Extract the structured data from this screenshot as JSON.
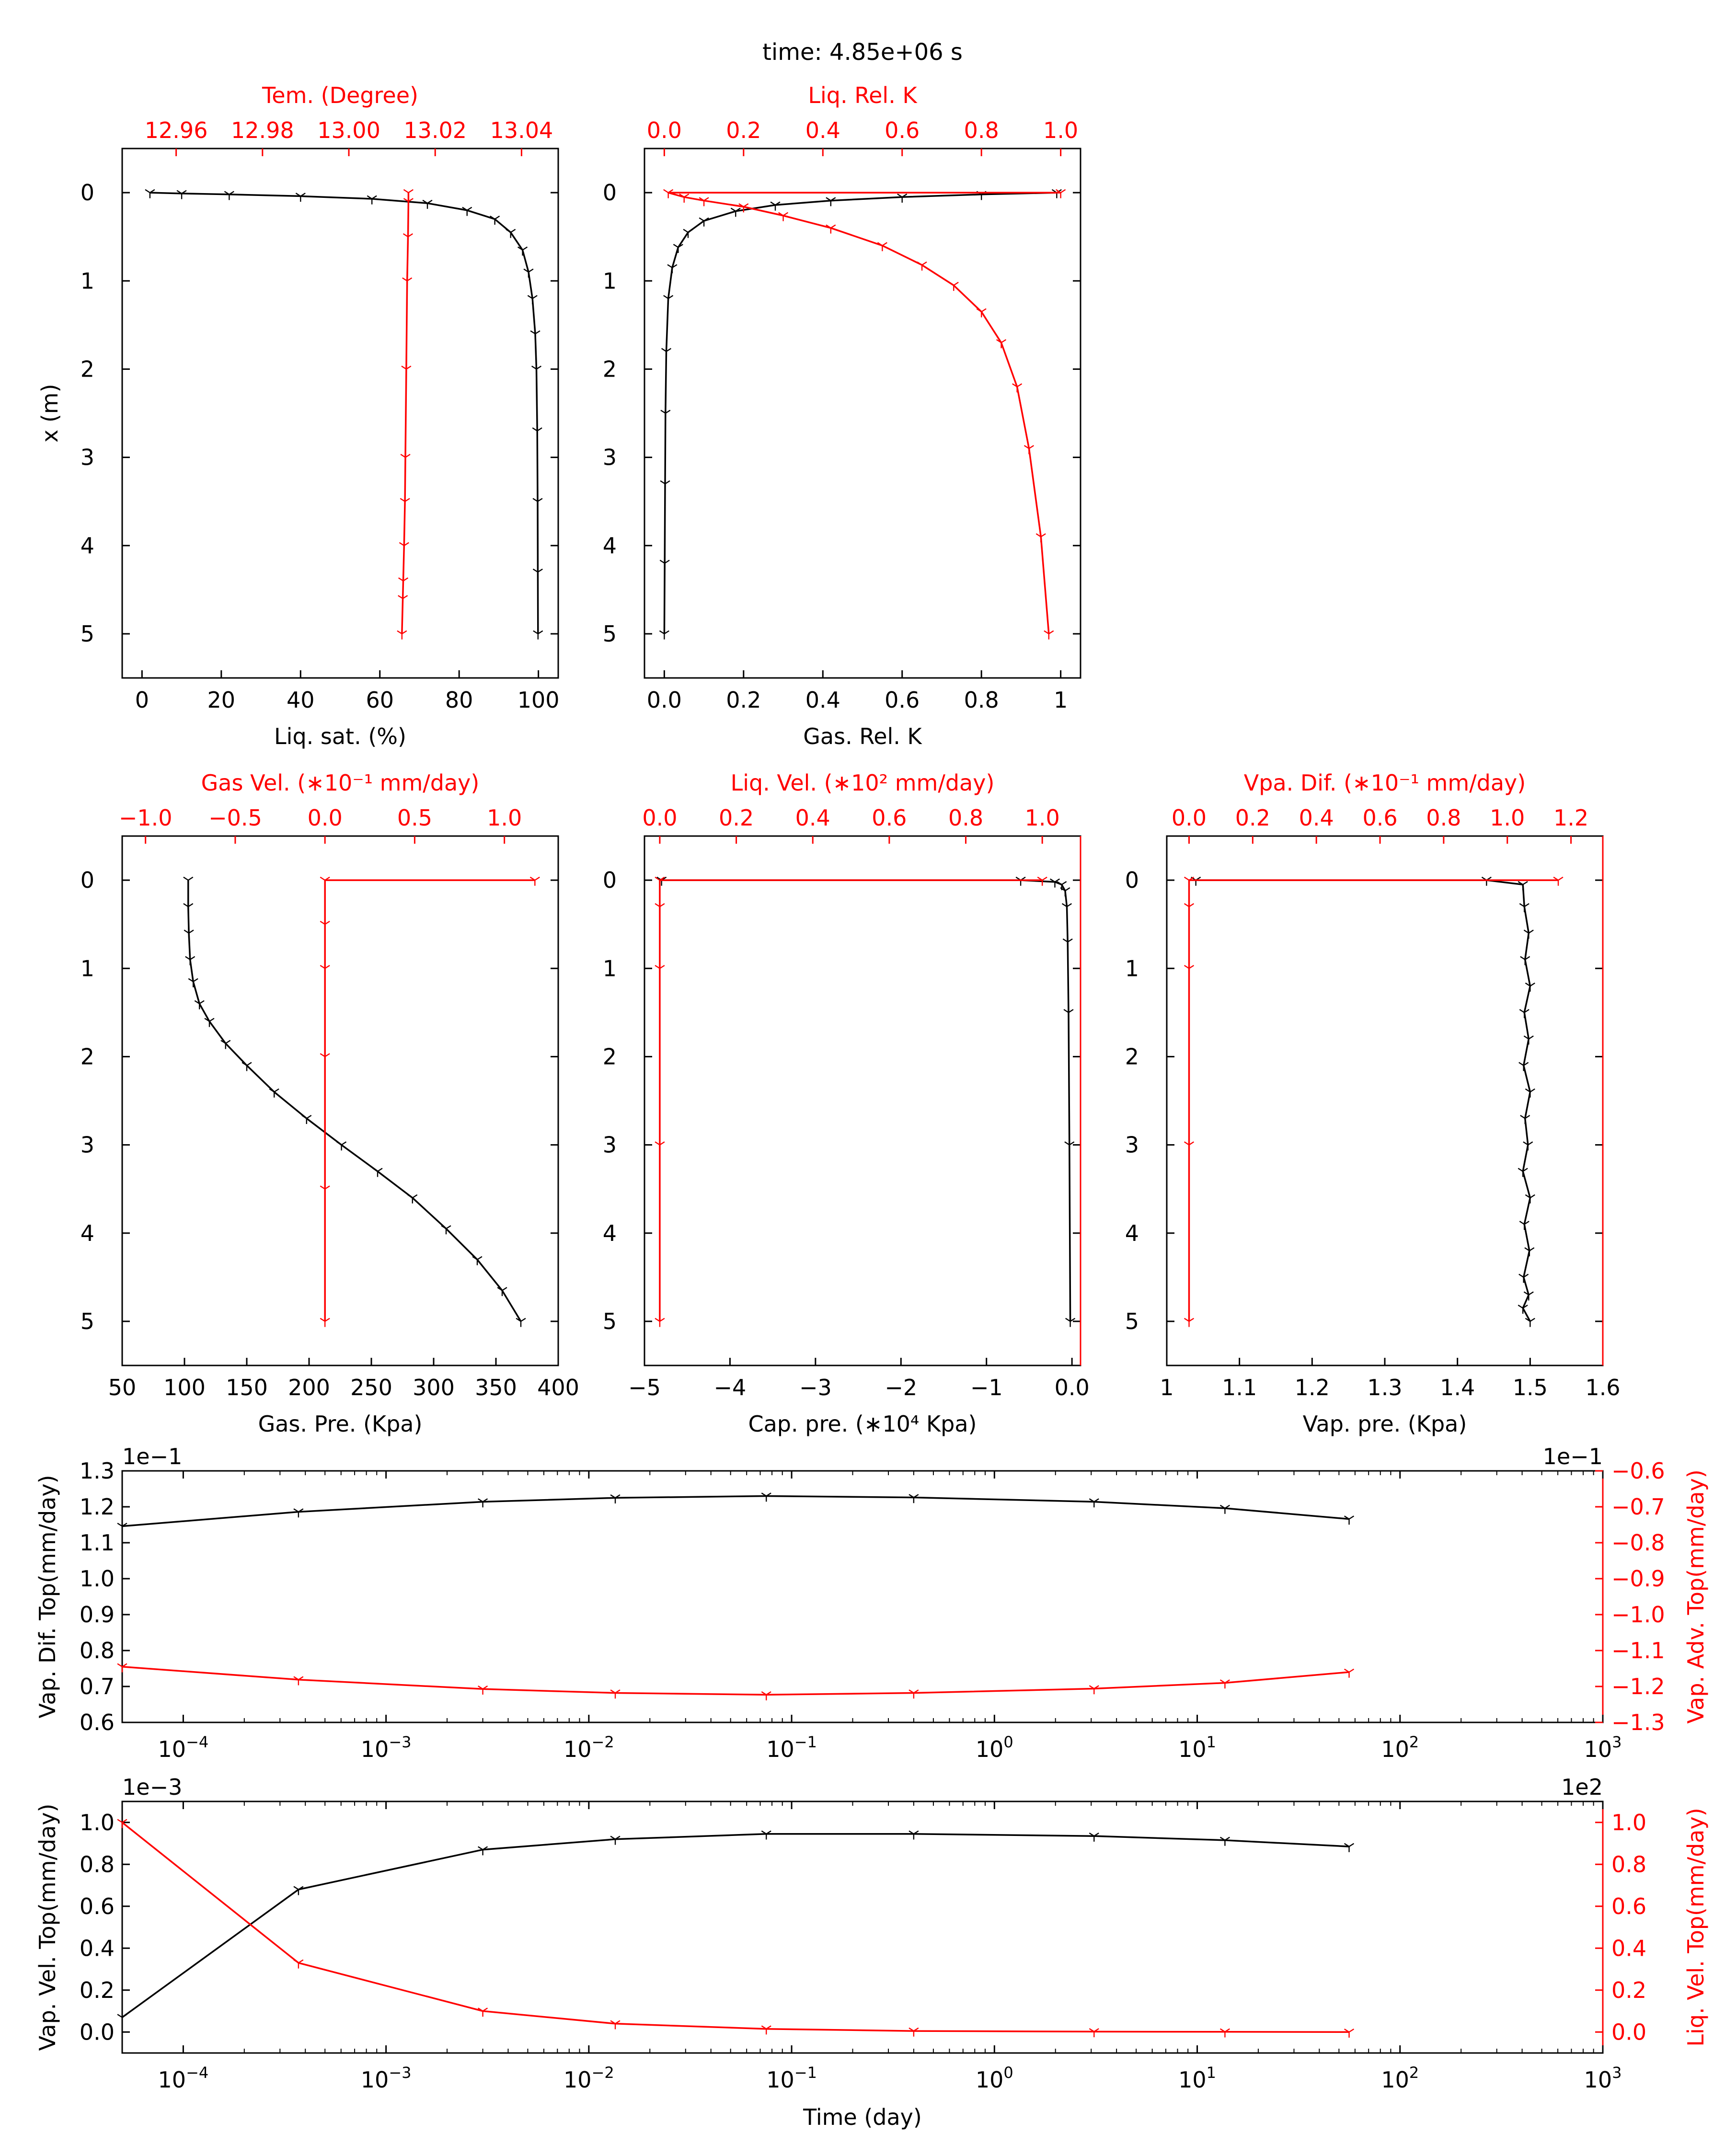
{
  "figure": {
    "title": "time: 4.85e+06 s"
  },
  "colors": {
    "black_series": "#000000",
    "red_series": "#ff0000",
    "frame": "#000000"
  },
  "chart_data": [
    {
      "id": "p1",
      "type": "line",
      "xlabel": "Liq. sat. (%)",
      "xlim": [
        -5,
        105
      ],
      "xticks": [
        0,
        20,
        40,
        60,
        80,
        100
      ],
      "ylabel": "x (m)",
      "ylim": [
        5.5,
        -0.5
      ],
      "yticks": [
        0,
        1,
        2,
        3,
        4,
        5
      ],
      "top_xlabel": "Tem. (Degree)",
      "top_xlim": [
        12.9475,
        13.0485
      ],
      "top_xticks": [
        12.96,
        12.98,
        13.0,
        13.02,
        13.04
      ],
      "top_tick_labels": [
        "12.96",
        "12.98",
        "13.00",
        "13.02",
        "13.04"
      ],
      "series": [
        {
          "axis": "bottom",
          "color": "black",
          "x": [
            2,
            10,
            22,
            40,
            58,
            72,
            82,
            89,
            93,
            96,
            97.5,
            98.5,
            99.2,
            99.5,
            99.7,
            99.8,
            99.85,
            99.9
          ],
          "y": [
            0,
            0.01,
            0.02,
            0.04,
            0.07,
            0.12,
            0.2,
            0.3,
            0.45,
            0.65,
            0.9,
            1.2,
            1.6,
            2.0,
            2.7,
            3.5,
            4.3,
            5.0
          ]
        },
        {
          "axis": "top",
          "color": "red",
          "x": [
            13.0138,
            13.0138,
            13.0137,
            13.0135,
            13.0133,
            13.0131,
            13.013,
            13.0128,
            13.0126,
            13.0125,
            13.0123
          ],
          "y": [
            0,
            0.1,
            0.5,
            1.0,
            2.0,
            3.0,
            3.5,
            4.0,
            4.4,
            4.6,
            5.0
          ]
        }
      ]
    },
    {
      "id": "p2",
      "type": "line",
      "xlabel": "Gas. Rel. K",
      "xlim": [
        -0.05,
        1.05
      ],
      "xticks": [
        0,
        0.2,
        0.4,
        0.6,
        0.8,
        1.0
      ],
      "ylim": [
        5.5,
        -0.5
      ],
      "yticks": [
        0,
        1,
        2,
        3,
        4,
        5
      ],
      "top_xlabel": "Liq. Rel. K",
      "top_xlim": [
        -0.05,
        1.05
      ],
      "top_xticks": [
        0,
        0.2,
        0.4,
        0.6,
        0.8,
        1.0
      ],
      "top_tick_labels": [
        "0.0",
        "0.2",
        "0.4",
        "0.6",
        "0.8",
        "1.0"
      ],
      "series": [
        {
          "axis": "bottom",
          "color": "black",
          "x": [
            0.99,
            0.8,
            0.6,
            0.42,
            0.28,
            0.18,
            0.1,
            0.06,
            0.035,
            0.02,
            0.01,
            0.005,
            0.003,
            0.002,
            0.001,
            0.0
          ],
          "y": [
            0,
            0.02,
            0.05,
            0.09,
            0.14,
            0.21,
            0.32,
            0.45,
            0.62,
            0.85,
            1.2,
            1.8,
            2.5,
            3.3,
            4.2,
            5.0
          ]
        },
        {
          "axis": "top",
          "color": "red",
          "x": [
            1.0,
            0.01,
            0.05,
            0.1,
            0.2,
            0.3,
            0.42,
            0.55,
            0.65,
            0.73,
            0.8,
            0.85,
            0.89,
            0.92,
            0.95,
            0.97
          ],
          "y": [
            0,
            0.0,
            0.05,
            0.09,
            0.16,
            0.26,
            0.4,
            0.6,
            0.82,
            1.05,
            1.35,
            1.7,
            2.2,
            2.9,
            3.9,
            5.0
          ]
        }
      ]
    },
    {
      "id": "p3",
      "type": "line",
      "xlabel": "Gas. Pre. (Kpa)",
      "xlim": [
        50,
        400
      ],
      "xticks": [
        50,
        100,
        150,
        200,
        250,
        300,
        350,
        400
      ],
      "ylim": [
        5.5,
        -0.5
      ],
      "yticks": [
        0,
        1,
        2,
        3,
        4,
        5
      ],
      "top_xlabel": "Gas Vel. (∗10⁻¹ mm/day)",
      "top_xlim": [
        -1.13,
        1.3
      ],
      "top_xticks": [
        -1.0,
        -0.5,
        0.0,
        0.5,
        1.0
      ],
      "top_tick_labels": [
        "−1.0",
        "−0.5",
        "0.0",
        "0.5",
        "1.0"
      ],
      "series": [
        {
          "axis": "bottom",
          "color": "black",
          "x": [
            103,
            103,
            103.5,
            104.5,
            107,
            112,
            120,
            133,
            150,
            172,
            198,
            226,
            255,
            283,
            310,
            335,
            355,
            370
          ],
          "y": [
            0,
            0.3,
            0.6,
            0.9,
            1.15,
            1.4,
            1.6,
            1.85,
            2.1,
            2.4,
            2.7,
            3.0,
            3.3,
            3.6,
            3.95,
            4.3,
            4.65,
            5.0
          ]
        },
        {
          "axis": "top",
          "color": "red",
          "x": [
            1.17,
            0.0,
            0.0,
            0.0,
            0.0,
            0.0,
            0.0
          ],
          "y": [
            0,
            0.0,
            0.5,
            1.0,
            2.0,
            3.5,
            5.0
          ]
        }
      ]
    },
    {
      "id": "p4",
      "type": "line",
      "xlabel": "Cap. pre. (∗10⁴ Kpa)",
      "xlim": [
        -5.0,
        0.1
      ],
      "xticks": [
        -5,
        -4,
        -3,
        -2,
        -1,
        0
      ],
      "ylim": [
        5.5,
        -0.5
      ],
      "yticks": [
        0,
        1,
        2,
        3,
        4,
        5
      ],
      "top_xlabel": "Liq. Vel. (∗10² mm/day)",
      "top_xlim": [
        -0.04,
        1.1
      ],
      "top_xticks": [
        0.0,
        0.2,
        0.4,
        0.6,
        0.8,
        1.0
      ],
      "top_tick_labels": [
        "0.0",
        "0.2",
        "0.4",
        "0.6",
        "0.8",
        "1.0"
      ],
      "series": [
        {
          "axis": "bottom",
          "color": "black",
          "x": [
            -4.8,
            -0.6,
            -0.2,
            -0.12,
            -0.08,
            -0.06,
            -0.05,
            -0.04,
            -0.03,
            -0.02
          ],
          "y": [
            0,
            0.0,
            0.02,
            0.05,
            0.12,
            0.3,
            0.7,
            1.5,
            3.0,
            5.0
          ]
        },
        {
          "axis": "top",
          "color": "red",
          "x": [
            1.0,
            0.0,
            0.0,
            0.0,
            0.0,
            0.0
          ],
          "y": [
            0,
            0.0,
            0.3,
            1.0,
            3.0,
            5.0
          ]
        }
      ]
    },
    {
      "id": "p5",
      "type": "line",
      "xlabel": "Vap. pre. (Kpa)",
      "xlim": [
        1.0,
        1.6
      ],
      "xticks": [
        1.0,
        1.1,
        1.2,
        1.3,
        1.4,
        1.5,
        1.6
      ],
      "ylim": [
        5.5,
        -0.5
      ],
      "yticks": [
        0,
        1,
        2,
        3,
        4,
        5
      ],
      "top_xlabel": "Vpa. Dif. (∗10⁻¹ mm/day)",
      "top_xlim": [
        -0.07,
        1.3
      ],
      "top_xticks": [
        0.0,
        0.2,
        0.4,
        0.6,
        0.8,
        1.0,
        1.2
      ],
      "top_tick_labels": [
        "0.0",
        "0.2",
        "0.4",
        "0.6",
        "0.8",
        "1.0",
        "1.2"
      ],
      "series": [
        {
          "axis": "bottom",
          "color": "black",
          "x": [
            1.04,
            1.44,
            1.49,
            1.492,
            1.498,
            1.493,
            1.5,
            1.492,
            1.498,
            1.491,
            1.5,
            1.493,
            1.497,
            1.49,
            1.5,
            1.492,
            1.499,
            1.491,
            1.498,
            1.49,
            1.5
          ],
          "y": [
            0,
            0.0,
            0.05,
            0.3,
            0.6,
            0.9,
            1.2,
            1.5,
            1.8,
            2.1,
            2.4,
            2.7,
            3.0,
            3.3,
            3.6,
            3.9,
            4.2,
            4.5,
            4.7,
            4.85,
            5.0
          ]
        },
        {
          "axis": "top",
          "color": "red",
          "x": [
            1.16,
            0.0,
            0.0,
            0.0,
            0.0,
            0.0
          ],
          "y": [
            0,
            0.0,
            0.3,
            1.0,
            3.0,
            5.0
          ]
        }
      ]
    },
    {
      "id": "p6",
      "type": "line",
      "xscale": "log",
      "xlim": [
        5e-05,
        1000
      ],
      "xticks": [
        0.0001,
        0.001,
        0.01,
        0.1,
        1,
        10,
        100,
        1000
      ],
      "xtick_labels": [
        {
          "base": "10",
          "exp": "-4"
        },
        {
          "base": "10",
          "exp": "-3"
        },
        {
          "base": "10",
          "exp": "-2"
        },
        {
          "base": "10",
          "exp": "-1"
        },
        {
          "base": "10",
          "exp": "0"
        },
        {
          "base": "10",
          "exp": "1"
        },
        {
          "base": "10",
          "exp": "2"
        },
        {
          "base": "10",
          "exp": "3"
        }
      ],
      "ylabel": "Vap. Dif. Top(mm/day)",
      "ylim": [
        0.6,
        1.3
      ],
      "yticks": [
        0.6,
        0.7,
        0.8,
        0.9,
        1.0,
        1.1,
        1.2,
        1.3
      ],
      "ytick_labels": [
        "0.6",
        "0.7",
        "0.8",
        "0.9",
        "1.0",
        "1.1",
        "1.2",
        "1.3"
      ],
      "y_offset": "1e−1",
      "right_ylabel": "Vap. Adv. Top(mm/day)",
      "right_ylim": [
        -1.3,
        -0.6
      ],
      "right_yticks": [
        -1.3,
        -1.2,
        -1.1,
        -1.0,
        -0.9,
        -0.8,
        -0.7,
        -0.6
      ],
      "right_ytick_labels": [
        "−1.3",
        "−1.2",
        "−1.1",
        "−1.0",
        "−0.9",
        "−0.8",
        "−0.7",
        "−0.6"
      ],
      "right_y_offset": "1e−1",
      "series": [
        {
          "axis": "left",
          "color": "black",
          "x": [
            5e-05,
            0.00037,
            0.003,
            0.0135,
            0.075,
            0.4,
            3.1,
            13.7,
            56.1
          ],
          "y": [
            1.146,
            1.186,
            1.214,
            1.225,
            1.23,
            1.226,
            1.214,
            1.196,
            1.166
          ]
        },
        {
          "axis": "right",
          "color": "red",
          "x": [
            5e-05,
            0.00037,
            0.003,
            0.0135,
            0.075,
            0.4,
            3.1,
            13.7,
            56.1
          ],
          "y": [
            -1.145,
            -1.181,
            -1.207,
            -1.218,
            -1.223,
            -1.218,
            -1.206,
            -1.19,
            -1.16
          ]
        }
      ]
    },
    {
      "id": "p7",
      "type": "line",
      "xscale": "log",
      "xlabel": "Time (day)",
      "xlim": [
        5e-05,
        1000
      ],
      "xticks": [
        0.0001,
        0.001,
        0.01,
        0.1,
        1,
        10,
        100,
        1000
      ],
      "xtick_labels": [
        {
          "base": "10",
          "exp": "-4"
        },
        {
          "base": "10",
          "exp": "-3"
        },
        {
          "base": "10",
          "exp": "-2"
        },
        {
          "base": "10",
          "exp": "-1"
        },
        {
          "base": "10",
          "exp": "0"
        },
        {
          "base": "10",
          "exp": "1"
        },
        {
          "base": "10",
          "exp": "2"
        },
        {
          "base": "10",
          "exp": "3"
        }
      ],
      "ylabel": "Vap. Vel. Top(mm/day)",
      "ylim": [
        -0.1,
        1.1
      ],
      "yticks": [
        0.0,
        0.2,
        0.4,
        0.6,
        0.8,
        1.0
      ],
      "ytick_labels": [
        "0.0",
        "0.2",
        "0.4",
        "0.6",
        "0.8",
        "1.0"
      ],
      "y_offset": "1e−3",
      "right_ylabel": "Liq. Vel. Top(mm/day)",
      "right_ylim": [
        -0.1,
        1.1
      ],
      "right_yticks": [
        0.0,
        0.2,
        0.4,
        0.6,
        0.8,
        1.0
      ],
      "right_ytick_labels": [
        "0.0",
        "0.2",
        "0.4",
        "0.6",
        "0.8",
        "1.0"
      ],
      "right_y_offset": "1e2",
      "series": [
        {
          "axis": "left",
          "color": "black",
          "x": [
            5e-05,
            0.00037,
            0.003,
            0.0135,
            0.075,
            0.4,
            3.1,
            13.7,
            56.1
          ],
          "y": [
            0.07,
            0.68,
            0.87,
            0.92,
            0.945,
            0.945,
            0.935,
            0.915,
            0.885
          ]
        },
        {
          "axis": "right",
          "color": "red",
          "x": [
            5e-05,
            0.00037,
            0.003,
            0.0135,
            0.075,
            0.4,
            3.1,
            13.7,
            56.1
          ],
          "y": [
            1.0,
            0.33,
            0.1,
            0.04,
            0.015,
            0.005,
            0.002,
            0.001,
            0.0
          ]
        }
      ]
    }
  ]
}
